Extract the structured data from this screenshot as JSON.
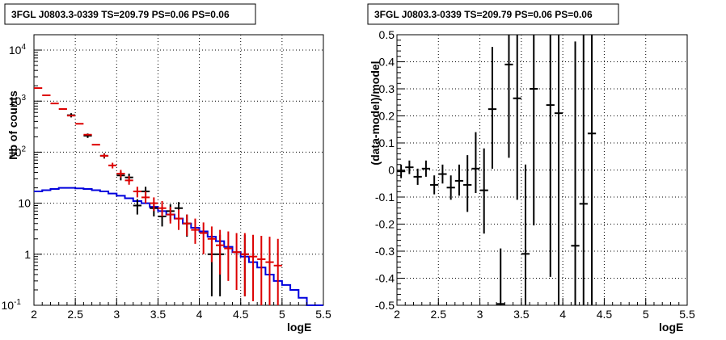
{
  "chart_data": [
    {
      "type": "histogram",
      "title": "3FGL J0803.3-0339 TS=209.79 PS=0.06 PS=0.06",
      "xlabel": "logE",
      "ylabel": "Nb of counts",
      "xlim": [
        2,
        5.5
      ],
      "ylim": [
        0.1,
        20000
      ],
      "yscale": "log",
      "grid": true,
      "x_ticks": [
        "2",
        "2.5",
        "3",
        "3.5",
        "4",
        "4.5",
        "5",
        "5.5"
      ],
      "y_ticks": [
        {
          "value": 0.1,
          "label": "10",
          "sup": "-1"
        },
        {
          "value": 1,
          "label": "1",
          "sup": ""
        },
        {
          "value": 10,
          "label": "10",
          "sup": ""
        },
        {
          "value": 100,
          "label": "10",
          "sup": "2"
        },
        {
          "value": 1000,
          "label": "10",
          "sup": "3"
        },
        {
          "value": 10000,
          "label": "10",
          "sup": "4"
        }
      ],
      "series": [
        {
          "color": "#000000",
          "style": "errorbars",
          "x": [
            2.45,
            2.65,
            2.85,
            3.05,
            3.15,
            3.25,
            3.35,
            3.45,
            3.55,
            3.65,
            3.75,
            3.85,
            4.15,
            4.25,
            4.55
          ],
          "y": [
            530,
            210,
            85,
            35,
            32,
            9,
            17,
            8,
            5.5,
            7,
            8,
            4,
            1,
            1,
            1
          ],
          "ylow": [
            480,
            190,
            75,
            28,
            26,
            6,
            13,
            5.5,
            3.5,
            4.5,
            5.5,
            2.2,
            0.15,
            0.15,
            0.15
          ],
          "yhigh": [
            580,
            232,
            95,
            42,
            38,
            12,
            21,
            10.5,
            8,
            9.5,
            10.5,
            6,
            2.4,
            2.4,
            2.4
          ]
        },
        {
          "color": "#dd0000",
          "style": "errorbars",
          "x": [
            2.05,
            2.15,
            2.25,
            2.35,
            2.45,
            2.55,
            2.65,
            2.75,
            2.85,
            2.95,
            3.05,
            3.15,
            3.25,
            3.35,
            3.45,
            3.55,
            3.65,
            3.75,
            3.85,
            3.95,
            4.05,
            4.15,
            4.25,
            4.35,
            4.45,
            4.55,
            4.65,
            4.75,
            4.85,
            4.95
          ],
          "y": [
            1800,
            1300,
            900,
            700,
            520,
            360,
            220,
            140,
            85,
            55,
            38,
            28,
            17,
            13,
            10,
            8,
            6,
            5,
            4,
            3,
            2.6,
            2,
            1.5,
            1.3,
            1.1,
            1,
            0.9,
            0.8,
            0.7,
            0.6
          ],
          "ylow": [
            1800,
            1300,
            900,
            700,
            520,
            360,
            220,
            140,
            78,
            48,
            32,
            23,
            13,
            10,
            7,
            5.5,
            4,
            3,
            2.3,
            1.6,
            1,
            0.7,
            0.4,
            0.3,
            0.2,
            0.15,
            0.12,
            0.1,
            0.1,
            0.1
          ],
          "yhigh": [
            1800,
            1300,
            900,
            700,
            520,
            360,
            220,
            140,
            93,
            62,
            45,
            34,
            21,
            17,
            13,
            11,
            8.5,
            7.5,
            6,
            5,
            4.2,
            3.5,
            3,
            2.8,
            2.6,
            2.6,
            2.4,
            2.3,
            2.2,
            2
          ]
        },
        {
          "color": "#0000dd",
          "style": "step",
          "x": [
            2.0,
            2.1,
            2.2,
            2.3,
            2.4,
            2.5,
            2.6,
            2.7,
            2.8,
            2.9,
            3.0,
            3.1,
            3.2,
            3.3,
            3.4,
            3.5,
            3.6,
            3.7,
            3.8,
            3.9,
            4.0,
            4.1,
            4.2,
            4.3,
            4.4,
            4.5,
            4.6,
            4.7,
            4.8,
            4.9,
            5.0,
            5.1,
            5.2,
            5.3,
            5.4,
            5.5
          ],
          "y": [
            17,
            18,
            19,
            20,
            20,
            19.5,
            19,
            18,
            17,
            15.5,
            14,
            12.5,
            11,
            10,
            8.5,
            7,
            6,
            5,
            4,
            3.3,
            2.8,
            2.2,
            1.8,
            1.4,
            1.1,
            0.9,
            0.7,
            0.55,
            0.4,
            0.3,
            0.25,
            0.2,
            0.14,
            0.1,
            0.1
          ]
        }
      ]
    },
    {
      "type": "scatter",
      "title": "3FGL J0803.3-0339 TS=209.79 PS=0.06 PS=0.06",
      "xlabel": "logE",
      "ylabel": "(data-model)/model",
      "xlim": [
        2,
        5.5
      ],
      "ylim": [
        -0.5,
        0.5
      ],
      "grid": true,
      "x_ticks": [
        "2",
        "2.5",
        "3",
        "3.5",
        "4",
        "4.5",
        "5",
        "5.5"
      ],
      "y_ticks": [
        "-0.5",
        "-0.4",
        "-0.3",
        "-0.2",
        "-0.1",
        "0",
        "0.1",
        "0.2",
        "0.3",
        "0.4",
        "0.5"
      ],
      "series": [
        {
          "color": "#000000",
          "style": "errorbars",
          "x": [
            2.05,
            2.15,
            2.25,
            2.35,
            2.45,
            2.55,
            2.65,
            2.75,
            2.85,
            2.95,
            3.05,
            3.15,
            3.25,
            3.35,
            3.45,
            3.55,
            3.65,
            3.85,
            3.95,
            4.15,
            4.25,
            4.35
          ],
          "y": [
            -0.005,
            0.01,
            -0.025,
            0.005,
            -0.055,
            -0.015,
            -0.065,
            -0.04,
            -0.055,
            0.005,
            -0.075,
            0.225,
            -0.495,
            0.39,
            0.265,
            -0.31,
            0.3,
            0.24,
            0.21,
            -0.28,
            -0.125,
            0.135
          ],
          "ylow": [
            -0.03,
            -0.015,
            -0.055,
            -0.025,
            -0.09,
            -0.05,
            -0.11,
            -0.095,
            -0.155,
            -0.085,
            -0.235,
            0.005,
            -0.5,
            0.045,
            -0.11,
            -0.5,
            -0.205,
            -0.395,
            -0.5,
            -0.5,
            -0.5,
            -0.5
          ],
          "yhigh": [
            0.02,
            0.035,
            0.005,
            0.035,
            -0.02,
            0.02,
            -0.02,
            0.02,
            0.055,
            0.14,
            0.08,
            0.455,
            -0.29,
            0.5,
            0.5,
            0.02,
            0.5,
            0.5,
            0.5,
            0.475,
            0.5,
            0.5
          ]
        }
      ]
    }
  ]
}
